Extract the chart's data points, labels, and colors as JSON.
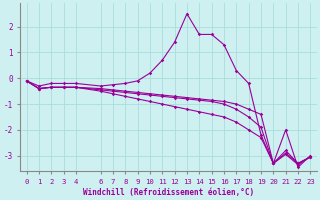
{
  "xlabel": "Windchill (Refroidissement éolien,°C)",
  "background_color": "#cef0f0",
  "line_color": "#990099",
  "grid_color": "#aadddd",
  "spine_color": "#888888",
  "xlim": [
    -0.5,
    23.5
  ],
  "ylim": [
    -3.6,
    2.9
  ],
  "xticks": [
    0,
    1,
    2,
    3,
    4,
    6,
    7,
    8,
    9,
    10,
    11,
    12,
    13,
    14,
    15,
    16,
    17,
    18,
    19,
    20,
    21,
    22,
    23
  ],
  "yticks": [
    -3,
    -2,
    -1,
    0,
    1,
    2
  ],
  "tick_fontsize": 5.2,
  "xlabel_fontsize": 5.5,
  "series": [
    {
      "x": [
        0,
        1,
        2,
        3,
        4,
        6,
        7,
        8,
        9,
        10,
        11,
        12,
        13,
        14,
        15,
        16,
        17,
        18,
        19,
        20,
        21,
        22,
        23
      ],
      "y": [
        -0.1,
        -0.3,
        -0.2,
        -0.2,
        -0.2,
        -0.3,
        -0.25,
        -0.2,
        -0.1,
        0.2,
        0.7,
        1.4,
        2.5,
        1.7,
        1.7,
        1.3,
        0.3,
        -0.2,
        -2.2,
        -3.3,
        -2.0,
        -3.45,
        -3.0
      ]
    },
    {
      "x": [
        0,
        1,
        2,
        3,
        4,
        6,
        7,
        8,
        9,
        10,
        11,
        12,
        13,
        14,
        15,
        16,
        17,
        18,
        19,
        20,
        21,
        22,
        23
      ],
      "y": [
        -0.1,
        -0.4,
        -0.35,
        -0.35,
        -0.35,
        -0.4,
        -0.45,
        -0.5,
        -0.55,
        -0.6,
        -0.65,
        -0.7,
        -0.75,
        -0.8,
        -0.85,
        -0.9,
        -1.0,
        -1.2,
        -1.4,
        -3.3,
        -2.8,
        -3.3,
        -3.05
      ]
    },
    {
      "x": [
        0,
        1,
        2,
        3,
        4,
        6,
        7,
        8,
        9,
        10,
        11,
        12,
        13,
        14,
        15,
        16,
        17,
        18,
        19,
        20,
        21,
        22,
        23
      ],
      "y": [
        -0.1,
        -0.4,
        -0.35,
        -0.35,
        -0.35,
        -0.45,
        -0.5,
        -0.55,
        -0.6,
        -0.65,
        -0.7,
        -0.75,
        -0.8,
        -0.85,
        -0.9,
        -1.0,
        -1.2,
        -1.5,
        -1.9,
        -3.3,
        -2.9,
        -3.3,
        -3.05
      ]
    },
    {
      "x": [
        0,
        1,
        2,
        3,
        4,
        6,
        7,
        8,
        9,
        10,
        11,
        12,
        13,
        14,
        15,
        16,
        17,
        18,
        19,
        20,
        21,
        22,
        23
      ],
      "y": [
        -0.1,
        -0.4,
        -0.35,
        -0.35,
        -0.35,
        -0.5,
        -0.6,
        -0.7,
        -0.8,
        -0.9,
        -1.0,
        -1.1,
        -1.2,
        -1.3,
        -1.4,
        -1.5,
        -1.7,
        -2.0,
        -2.3,
        -3.3,
        -2.95,
        -3.35,
        -3.05
      ]
    }
  ]
}
